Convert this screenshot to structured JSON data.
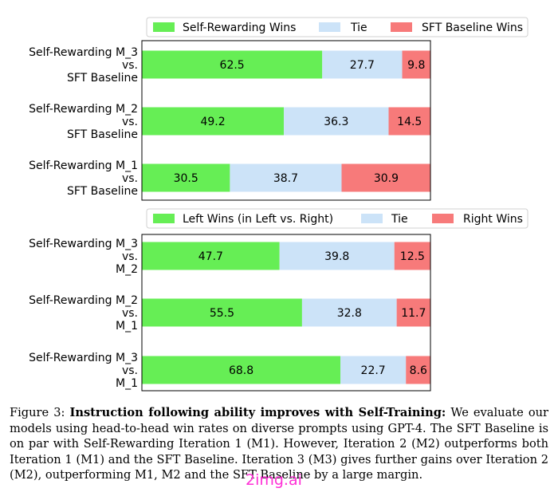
{
  "colors": {
    "left": "#66ee55",
    "tie": "#cce3f8",
    "right": "#f77a7a"
  },
  "chart_data": [
    {
      "type": "bar",
      "orientation": "horizontal-stacked",
      "legend_position": "top",
      "legend": [
        "Self-Rewarding Wins",
        "Tie",
        "SFT Baseline Wins"
      ],
      "xlim": [
        0,
        100
      ],
      "categories": [
        [
          "Self-Rewarding M_3",
          "vs.",
          "SFT Baseline"
        ],
        [
          "Self-Rewarding M_2",
          "vs.",
          "SFT Baseline"
        ],
        [
          "Self-Rewarding M_1",
          "vs.",
          "SFT Baseline"
        ]
      ],
      "series": [
        {
          "name": "Self-Rewarding Wins",
          "values": [
            62.5,
            49.2,
            30.5
          ],
          "labels": [
            "62.5",
            "49.2",
            "30.5"
          ]
        },
        {
          "name": "Tie",
          "values": [
            27.7,
            36.3,
            38.7
          ],
          "labels": [
            "27.7",
            "36.3",
            "38.7"
          ]
        },
        {
          "name": "SFT Baseline Wins",
          "values": [
            9.8,
            14.5,
            30.9
          ],
          "labels": [
            "9.8",
            "14.5",
            "30.9"
          ]
        }
      ]
    },
    {
      "type": "bar",
      "orientation": "horizontal-stacked",
      "legend_position": "top",
      "legend": [
        "Left Wins (in Left vs. Right)",
        "Tie",
        "Right Wins"
      ],
      "xlim": [
        0,
        100
      ],
      "categories": [
        [
          "Self-Rewarding M_3",
          "vs.",
          "M_2"
        ],
        [
          "Self-Rewarding M_2",
          "vs.",
          "M_1"
        ],
        [
          "Self-Rewarding M_3",
          "vs.",
          "M_1"
        ]
      ],
      "series": [
        {
          "name": "Left Wins (in Left vs. Right)",
          "values": [
            47.7,
            55.5,
            68.8
          ],
          "labels": [
            "47.7",
            "55.5",
            "68.8"
          ]
        },
        {
          "name": "Tie",
          "values": [
            39.8,
            32.8,
            22.7
          ],
          "labels": [
            "39.8",
            "32.8",
            "22.7"
          ]
        },
        {
          "name": "Right Wins",
          "values": [
            12.5,
            11.7,
            8.6
          ],
          "labels": [
            "12.5",
            "11.7",
            "8.6"
          ]
        }
      ]
    }
  ],
  "caption": {
    "label": "Figure 3:",
    "bold": "Instruction following ability improves with Self-Training:",
    "text": "We evaluate our models using head-to-head win rates on diverse prompts using GPT-4. The SFT Baseline is on par with Self-Rewarding Iteration 1 (M1). However, Iteration 2 (M2) outperforms both Iteration 1 (M1) and the SFT Baseline. Iteration 3 (M3) gives further gains over Iteration 2 (M2), outperforming M1, M2 and the SFT Baseline by a large margin."
  },
  "watermark": "2img.ai"
}
